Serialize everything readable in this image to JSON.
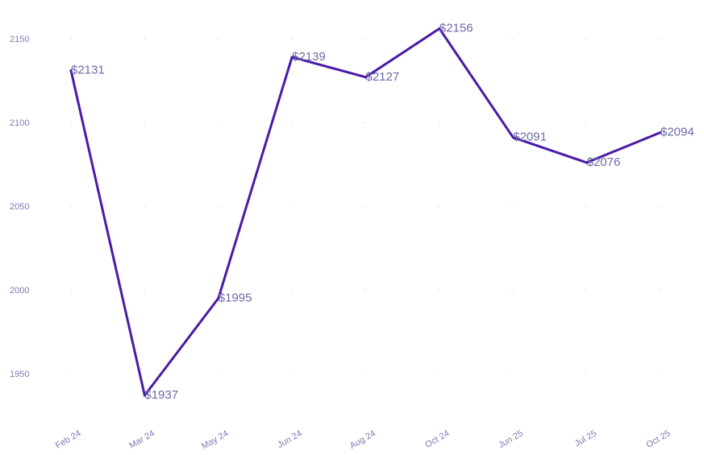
{
  "chart_data": {
    "type": "line",
    "title": "",
    "xlabel": "",
    "ylabel": "",
    "categories": [
      "Feb 24",
      "Mar 24",
      "May 24",
      "Jun 24",
      "Aug 24",
      "Oct 24",
      "Jun 25",
      "Jul 25",
      "Oct 25"
    ],
    "series": [
      {
        "values": [
          2131,
          1937,
          1995,
          2139,
          2127,
          2156,
          2091,
          2076,
          2094
        ],
        "labels": [
          "$2131",
          "$1937",
          "$1995",
          "$2139",
          "$2127",
          "$2156",
          "$2091",
          "$2076",
          "$2094"
        ]
      }
    ],
    "y_ticks": [
      "1950",
      "2000",
      "2050",
      "2100",
      "2150"
    ],
    "y_tick_values": [
      1950,
      2000,
      2050,
      2100,
      2150
    ],
    "ylim": [
      1926,
      2167
    ],
    "grid": true,
    "legend": "none",
    "colors": {
      "line": "#4a1aa8",
      "tick_text": "#7b7ab8",
      "label_text": "#6e6aa8",
      "grid": "#d4d4e0"
    }
  }
}
